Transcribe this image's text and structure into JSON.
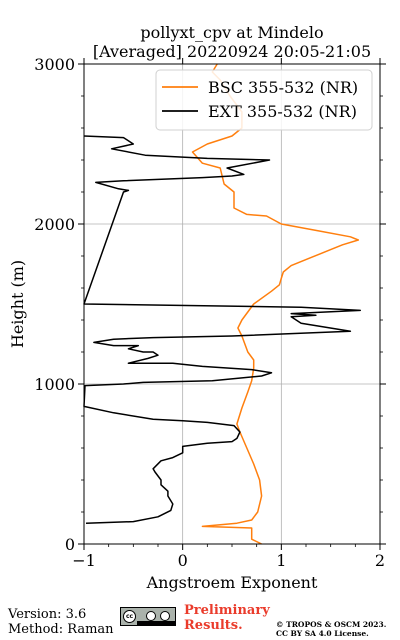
{
  "chart_data": {
    "type": "line",
    "title": "pollyxt_cpv at Mindelo",
    "subtitle": "[Averaged] 20220924 20:05-21:05",
    "xlabel": "Angstroem Exponent",
    "ylabel": "Height (m)",
    "xlim": [
      -1,
      2
    ],
    "ylim": [
      0,
      3000
    ],
    "xticks": [
      "−1",
      "0",
      "1",
      "2"
    ],
    "yticks": [
      "0",
      "1000",
      "2000",
      "3000"
    ],
    "grid": true,
    "legend_position": "top-right",
    "series": [
      {
        "name": "BSC 355-532 (NR)",
        "color": "#ff7f0e",
        "points": [
          [
            0.8,
            0
          ],
          [
            0.7,
            30
          ],
          [
            0.7,
            100
          ],
          [
            0.2,
            110
          ],
          [
            0.55,
            130
          ],
          [
            0.7,
            150
          ],
          [
            0.76,
            200
          ],
          [
            0.8,
            300
          ],
          [
            0.78,
            400
          ],
          [
            0.72,
            500
          ],
          [
            0.65,
            600
          ],
          [
            0.58,
            700
          ],
          [
            0.55,
            750
          ],
          [
            0.6,
            850
          ],
          [
            0.66,
            950
          ],
          [
            0.7,
            1020
          ],
          [
            0.72,
            1100
          ],
          [
            0.72,
            1150
          ],
          [
            0.66,
            1200
          ],
          [
            0.6,
            1300
          ],
          [
            0.56,
            1350
          ],
          [
            0.6,
            1400
          ],
          [
            0.72,
            1500
          ],
          [
            0.9,
            1580
          ],
          [
            0.98,
            1620
          ],
          [
            1.0,
            1660
          ],
          [
            1.02,
            1700
          ],
          [
            1.1,
            1740
          ],
          [
            1.3,
            1790
          ],
          [
            1.5,
            1840
          ],
          [
            1.62,
            1870
          ],
          [
            1.78,
            1900
          ],
          [
            1.7,
            1920
          ],
          [
            1.35,
            1960
          ],
          [
            1.0,
            2000
          ],
          [
            0.85,
            2050
          ],
          [
            0.65,
            2060
          ],
          [
            0.52,
            2100
          ],
          [
            0.52,
            2200
          ],
          [
            0.42,
            2250
          ],
          [
            0.38,
            2350
          ],
          [
            0.2,
            2380
          ],
          [
            0.1,
            2450
          ],
          [
            0.25,
            2500
          ],
          [
            0.5,
            2550
          ],
          [
            0.6,
            2600
          ],
          [
            0.6,
            2700
          ],
          [
            0.48,
            2800
          ],
          [
            0.38,
            2900
          ],
          [
            0.3,
            2950
          ],
          [
            0.35,
            3000
          ]
        ]
      },
      {
        "name": "EXT 355-532 (NR)",
        "color": "#000000",
        "points": [
          [
            -0.98,
            130
          ],
          [
            -0.5,
            140
          ],
          [
            -0.25,
            170
          ],
          [
            -0.12,
            210
          ],
          [
            -0.1,
            250
          ],
          [
            -0.15,
            300
          ],
          [
            -0.15,
            330
          ],
          [
            -0.22,
            370
          ],
          [
            -0.22,
            400
          ],
          [
            -0.28,
            450
          ],
          [
            -0.3,
            470
          ],
          [
            -0.22,
            520
          ],
          [
            -0.1,
            540
          ],
          [
            0.0,
            570
          ],
          [
            0.0,
            610
          ],
          [
            0.25,
            630
          ],
          [
            0.5,
            640
          ],
          [
            0.55,
            660
          ],
          [
            0.58,
            700
          ],
          [
            0.52,
            740
          ],
          [
            0.25,
            760
          ],
          [
            0.0,
            770
          ],
          [
            -0.3,
            780
          ],
          [
            -0.7,
            820
          ],
          [
            -1.0,
            860
          ],
          [
            -0.99,
            990
          ],
          [
            -0.6,
            1000
          ],
          [
            -0.4,
            1010
          ],
          [
            0.3,
            1020
          ],
          [
            0.8,
            1050
          ],
          [
            0.9,
            1070
          ],
          [
            0.7,
            1090
          ],
          [
            0.2,
            1110
          ],
          [
            -0.1,
            1130
          ],
          [
            -0.55,
            1130
          ],
          [
            -0.35,
            1160
          ],
          [
            -0.25,
            1180
          ],
          [
            -0.3,
            1200
          ],
          [
            -0.4,
            1200
          ],
          [
            -0.55,
            1220
          ],
          [
            -0.45,
            1240
          ],
          [
            -0.7,
            1240
          ],
          [
            -0.9,
            1260
          ],
          [
            -0.7,
            1280
          ],
          [
            -0.3,
            1290
          ],
          [
            0.5,
            1300
          ],
          [
            1.7,
            1330
          ],
          [
            1.2,
            1380
          ],
          [
            1.1,
            1420
          ],
          [
            1.35,
            1430
          ],
          [
            1.1,
            1440
          ],
          [
            1.8,
            1460
          ],
          [
            1.2,
            1480
          ],
          [
            -1.0,
            1500
          ],
          [
            -0.6,
            2200
          ],
          [
            -0.55,
            2210
          ],
          [
            -0.65,
            2220
          ],
          [
            -0.88,
            2260
          ],
          [
            -0.6,
            2270
          ],
          [
            0.2,
            2290
          ],
          [
            0.5,
            2300
          ],
          [
            0.62,
            2310
          ],
          [
            0.45,
            2350
          ],
          [
            0.88,
            2400
          ],
          [
            0.25,
            2410
          ],
          [
            -0.38,
            2430
          ],
          [
            -0.72,
            2470
          ],
          [
            -0.5,
            2500
          ],
          [
            -0.6,
            2540
          ],
          [
            -1.0,
            2550
          ]
        ]
      }
    ]
  },
  "footer": {
    "version": "Version: 3.6",
    "method": "Method: Raman",
    "preliminary_line1": "Preliminary",
    "preliminary_line2": "Results.",
    "copyright_line1": "© TROPOS & OSCM 2023.",
    "copyright_line2": "CC BY SA 4.0 License.",
    "badge_text": "cc"
  }
}
